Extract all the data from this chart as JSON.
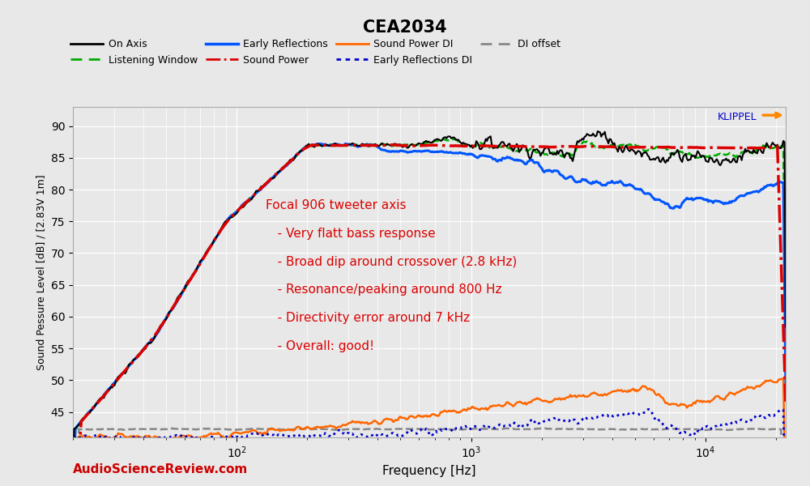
{
  "title": "CEA2034",
  "xlabel": "Frequency [Hz]",
  "ylabel": "Sound Pessure Level [dB] / [2.83V 1m]",
  "xlim": [
    20,
    22000
  ],
  "ylim": [
    41,
    93
  ],
  "yticks": [
    45,
    50,
    55,
    60,
    65,
    70,
    75,
    80,
    85,
    90
  ],
  "annotation_line1": "Focal 906 tweeter axis",
  "annotation_line2": "   - Very flatt bass response",
  "annotation_line3": "   - Broad dip around crossover (2.8 kHz)",
  "annotation_line4": "   - Resonance/peaking around 800 Hz",
  "annotation_line5": "   - Directivity error around 7 kHz",
  "annotation_line6": "   - Overall: good!",
  "annotation_color": "#dd0000",
  "watermark": "AudioScienceReview.com",
  "watermark_color": "#cc0000",
  "klippel_label": "KLIPPEL",
  "background_color": "#e8e8e8",
  "grid_color": "#ffffff",
  "series": {
    "on_axis": {
      "label": "On Axis",
      "color": "#000000",
      "linestyle": "solid",
      "linewidth": 1.5
    },
    "listening_window": {
      "label": "Listening Window",
      "color": "#00aa00",
      "linestyle": "dashed",
      "linewidth": 1.8
    },
    "early_reflections": {
      "label": "Early Reflections",
      "color": "#0055ff",
      "linestyle": "solid",
      "linewidth": 2.2
    },
    "sound_power": {
      "label": "Sound Power",
      "color": "#dd0000",
      "linestyle": "dashdot",
      "linewidth": 2.5
    },
    "sound_power_di": {
      "label": "Sound Power DI",
      "color": "#ff6600",
      "linestyle": "solid",
      "linewidth": 1.8
    },
    "early_reflections_di": {
      "label": "Early Reflections DI",
      "color": "#0000cc",
      "linestyle": "dotted",
      "linewidth": 2.0
    },
    "di_offset": {
      "label": "DI offset",
      "color": "#888888",
      "linestyle": "dashed",
      "linewidth": 1.8
    }
  }
}
